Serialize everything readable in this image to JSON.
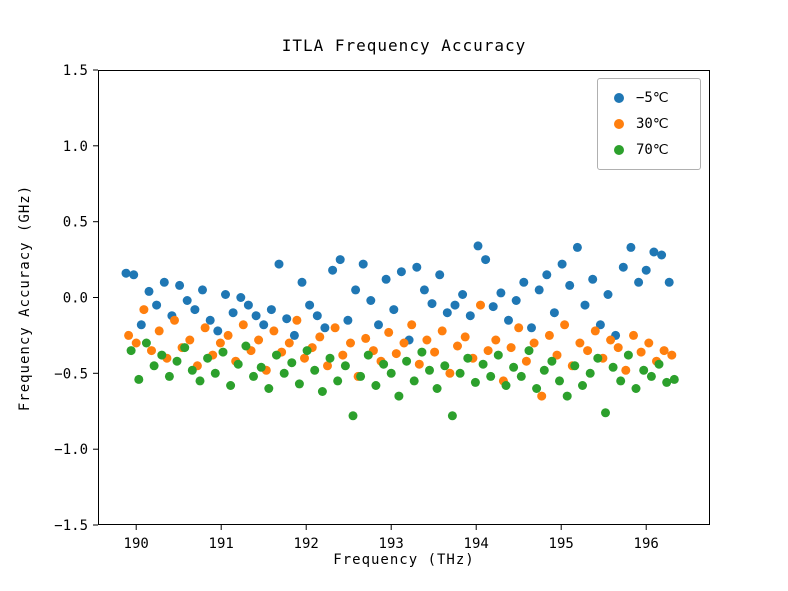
{
  "chart_data": {
    "type": "scatter",
    "title": "ITLA Frequency Accuracy",
    "xlabel": "Frequency (THz)",
    "ylabel": "Frequency Accuracy (GHz)",
    "xlim": [
      189.55,
      196.75
    ],
    "ylim": [
      -1.5,
      1.5
    ],
    "grid": false,
    "legend_position": "upper right",
    "x_ticks": [
      190,
      191,
      192,
      193,
      194,
      195,
      196
    ],
    "x_tick_labels": [
      "190",
      "191",
      "192",
      "193",
      "194",
      "195",
      "196"
    ],
    "y_ticks": [
      -1.5,
      -1.0,
      -0.5,
      0.0,
      0.5,
      1.0,
      1.5
    ],
    "y_tick_labels": [
      "−1.5",
      "−1.0",
      "−0.5",
      "0.0",
      "0.5",
      "1.0",
      "1.5"
    ],
    "marker_radius": 4.5,
    "series": [
      {
        "name": "−5℃",
        "color": "#1f77b4",
        "x": [
          189.88,
          189.97,
          190.06,
          190.15,
          190.24,
          190.33,
          190.42,
          190.51,
          190.6,
          190.69,
          190.78,
          190.87,
          190.96,
          191.05,
          191.14,
          191.23,
          191.32,
          191.41,
          191.5,
          191.59,
          191.68,
          191.77,
          191.86,
          191.95,
          192.04,
          192.13,
          192.22,
          192.31,
          192.4,
          192.49,
          192.58,
          192.67,
          192.76,
          192.85,
          192.94,
          193.03,
          193.12,
          193.21,
          193.3,
          193.39,
          193.48,
          193.57,
          193.66,
          193.75,
          193.84,
          193.93,
          194.02,
          194.11,
          194.2,
          194.29,
          194.38,
          194.47,
          194.56,
          194.65,
          194.74,
          194.83,
          194.92,
          195.01,
          195.1,
          195.19,
          195.28,
          195.37,
          195.46,
          195.55,
          195.64,
          195.73,
          195.82,
          195.91,
          196.0,
          196.09,
          196.18,
          196.27
        ],
        "y": [
          0.16,
          0.15,
          -0.18,
          0.04,
          -0.05,
          0.1,
          -0.12,
          0.08,
          -0.02,
          -0.08,
          0.05,
          -0.15,
          -0.22,
          0.02,
          -0.1,
          0.0,
          -0.05,
          -0.12,
          -0.18,
          -0.08,
          0.22,
          -0.14,
          -0.25,
          0.1,
          -0.05,
          -0.12,
          -0.2,
          0.18,
          0.25,
          -0.15,
          0.05,
          0.22,
          -0.02,
          -0.18,
          0.12,
          -0.08,
          0.17,
          -0.28,
          0.2,
          0.05,
          -0.04,
          0.15,
          -0.1,
          -0.05,
          0.02,
          -0.12,
          0.34,
          0.25,
          -0.06,
          0.03,
          -0.15,
          -0.02,
          0.1,
          -0.2,
          0.05,
          0.15,
          -0.1,
          0.22,
          0.08,
          0.33,
          -0.05,
          0.12,
          -0.18,
          0.02,
          -0.25,
          0.2,
          0.33,
          0.1,
          0.18,
          0.3,
          0.28,
          0.1
        ]
      },
      {
        "name": "30℃",
        "color": "#ff7f0e",
        "x": [
          189.91,
          190.0,
          190.09,
          190.18,
          190.27,
          190.36,
          190.45,
          190.54,
          190.63,
          190.72,
          190.81,
          190.9,
          190.99,
          191.08,
          191.17,
          191.26,
          191.35,
          191.44,
          191.53,
          191.62,
          191.71,
          191.8,
          191.89,
          191.98,
          192.07,
          192.16,
          192.25,
          192.34,
          192.43,
          192.52,
          192.61,
          192.7,
          192.79,
          192.88,
          192.97,
          193.06,
          193.15,
          193.24,
          193.33,
          193.42,
          193.51,
          193.6,
          193.69,
          193.78,
          193.87,
          193.96,
          194.05,
          194.14,
          194.23,
          194.32,
          194.41,
          194.5,
          194.59,
          194.68,
          194.77,
          194.86,
          194.95,
          195.04,
          195.13,
          195.22,
          195.31,
          195.4,
          195.49,
          195.58,
          195.67,
          195.76,
          195.85,
          195.94,
          196.03,
          196.12,
          196.21,
          196.3
        ],
        "y": [
          -0.25,
          -0.3,
          -0.08,
          -0.35,
          -0.22,
          -0.4,
          -0.15,
          -0.33,
          -0.28,
          -0.45,
          -0.2,
          -0.38,
          -0.3,
          -0.25,
          -0.42,
          -0.18,
          -0.35,
          -0.28,
          -0.48,
          -0.22,
          -0.36,
          -0.3,
          -0.15,
          -0.4,
          -0.33,
          -0.26,
          -0.45,
          -0.2,
          -0.38,
          -0.3,
          -0.52,
          -0.27,
          -0.35,
          -0.42,
          -0.23,
          -0.37,
          -0.3,
          -0.18,
          -0.44,
          -0.28,
          -0.36,
          -0.22,
          -0.5,
          -0.32,
          -0.26,
          -0.4,
          -0.05,
          -0.35,
          -0.28,
          -0.55,
          -0.33,
          -0.2,
          -0.42,
          -0.3,
          -0.65,
          -0.25,
          -0.38,
          -0.18,
          -0.45,
          -0.3,
          -0.35,
          -0.22,
          -0.4,
          -0.28,
          -0.33,
          -0.48,
          -0.25,
          -0.36,
          -0.3,
          -0.42,
          -0.35,
          -0.38
        ]
      },
      {
        "name": "70℃",
        "color": "#2ca02c",
        "x": [
          189.94,
          190.03,
          190.12,
          190.21,
          190.3,
          190.39,
          190.48,
          190.57,
          190.66,
          190.75,
          190.84,
          190.93,
          191.02,
          191.11,
          191.2,
          191.29,
          191.38,
          191.47,
          191.56,
          191.65,
          191.74,
          191.83,
          191.92,
          192.01,
          192.1,
          192.19,
          192.28,
          192.37,
          192.46,
          192.55,
          192.64,
          192.73,
          192.82,
          192.91,
          193.0,
          193.09,
          193.18,
          193.27,
          193.36,
          193.45,
          193.54,
          193.63,
          193.72,
          193.81,
          193.9,
          193.99,
          194.08,
          194.17,
          194.26,
          194.35,
          194.44,
          194.53,
          194.62,
          194.71,
          194.8,
          194.89,
          194.98,
          195.07,
          195.16,
          195.25,
          195.34,
          195.43,
          195.52,
          195.61,
          195.7,
          195.79,
          195.88,
          195.97,
          196.06,
          196.15,
          196.24,
          196.33
        ],
        "y": [
          -0.35,
          -0.54,
          -0.3,
          -0.45,
          -0.38,
          -0.52,
          -0.42,
          -0.33,
          -0.48,
          -0.55,
          -0.4,
          -0.5,
          -0.36,
          -0.58,
          -0.44,
          -0.32,
          -0.52,
          -0.46,
          -0.6,
          -0.38,
          -0.5,
          -0.43,
          -0.57,
          -0.35,
          -0.48,
          -0.62,
          -0.4,
          -0.55,
          -0.45,
          -0.78,
          -0.52,
          -0.38,
          -0.58,
          -0.44,
          -0.5,
          -0.65,
          -0.42,
          -0.55,
          -0.36,
          -0.48,
          -0.6,
          -0.45,
          -0.78,
          -0.5,
          -0.4,
          -0.56,
          -0.44,
          -0.52,
          -0.38,
          -0.58,
          -0.46,
          -0.52,
          -0.35,
          -0.6,
          -0.48,
          -0.42,
          -0.55,
          -0.65,
          -0.45,
          -0.58,
          -0.5,
          -0.4,
          -0.76,
          -0.46,
          -0.55,
          -0.38,
          -0.6,
          -0.48,
          -0.52,
          -0.44,
          -0.56,
          -0.54
        ]
      }
    ]
  }
}
